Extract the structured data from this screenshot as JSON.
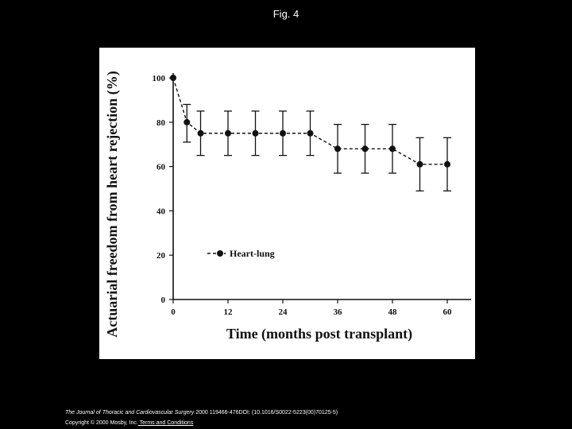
{
  "slide": {
    "title": "Fig. 4"
  },
  "citation": {
    "journal": "The Journal of Thoracic and Cardiovascular Surgery",
    "details": " 2000 119466-476DOI: (10.1016/S0022-5223(00)70125-5)",
    "copyright": "Copyright © 2000 Mosby, Inc.",
    "terms_link": " Terms and Conditions"
  },
  "colors": {
    "background": "#000000",
    "panel": "#ffffff",
    "ink": "#111111"
  },
  "chart_data": {
    "type": "line",
    "title": "",
    "xlabel": "Time (months post transplant)",
    "ylabel": "Actuarial freedom from heart rejection (%)",
    "xlim": [
      0,
      60
    ],
    "ylim": [
      0,
      100
    ],
    "x_ticks": [
      "0",
      "12",
      "24",
      "36",
      "48",
      "60"
    ],
    "y_ticks": [
      "0",
      "20",
      "40",
      "60",
      "80",
      "100"
    ],
    "grid": false,
    "legend": "inside, lower-left",
    "series": [
      {
        "name": "Heart-lung",
        "line_style": "dashed",
        "marker": "filled-circle",
        "x": [
          0,
          3,
          6,
          12,
          18,
          24,
          30,
          36,
          42,
          48,
          54,
          60
        ],
        "y": [
          100,
          80,
          75,
          75,
          75,
          75,
          75,
          68,
          68,
          68,
          61,
          61
        ],
        "error_upper": [
          100,
          88,
          85,
          85,
          85,
          85,
          85,
          79,
          79,
          79,
          73,
          73
        ],
        "error_lower": [
          100,
          71,
          65,
          65,
          65,
          65,
          65,
          57,
          57,
          57,
          49,
          49
        ]
      }
    ]
  }
}
